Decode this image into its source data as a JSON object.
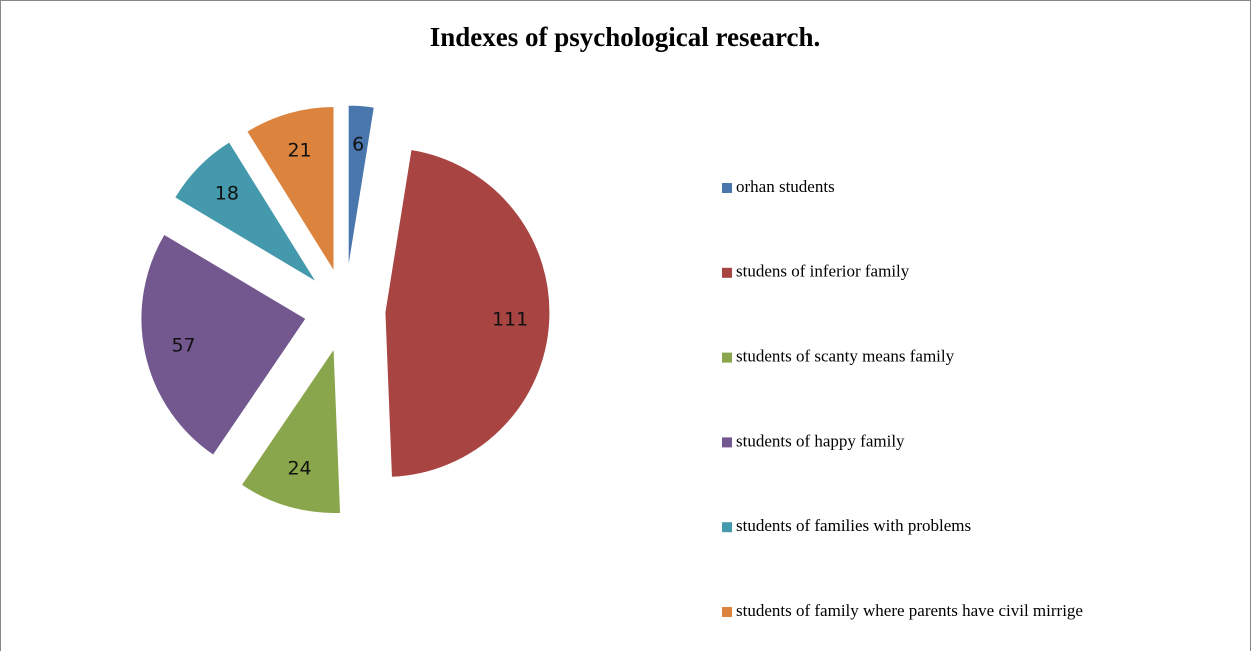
{
  "chart_data": {
    "type": "pie",
    "title": "Indexes of psychological research.",
    "categories": [
      "orhan students",
      "studens of inferior family",
      "students of scanty means family",
      "students of happy family",
      "students of families with problems",
      "students of family where parents have civil mirrige"
    ],
    "values": [
      6,
      111,
      24,
      57,
      18,
      21
    ],
    "colors": [
      "#4a76ae",
      "#a84442",
      "#8aa64c",
      "#72588f",
      "#4499ac",
      "#dc843e"
    ],
    "legend": "right"
  }
}
